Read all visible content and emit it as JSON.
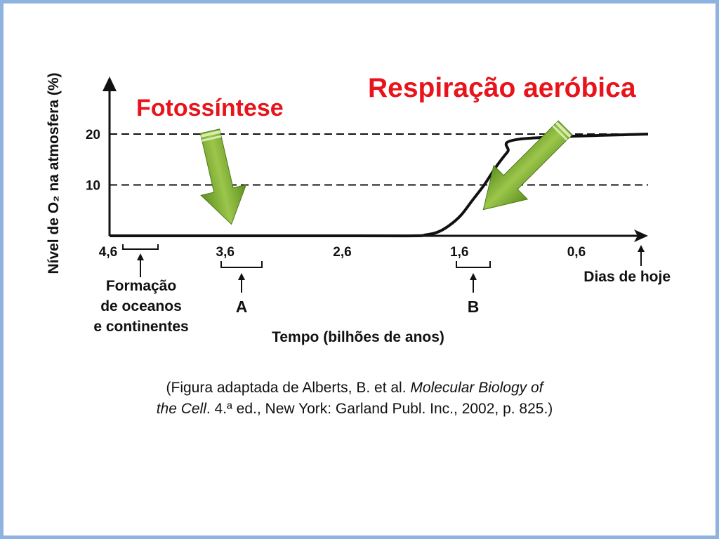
{
  "chart_data": {
    "type": "line",
    "ylabel": "Nível de O₂ na atmosfera (%)",
    "xlabel": "Tempo (bilhões de anos)",
    "x_ticks": [
      "4,6",
      "3,6",
      "2,6",
      "1,6",
      "0,6"
    ],
    "y_ticks": [
      "10",
      "20"
    ],
    "x": [
      4.6,
      2.6,
      2.0,
      1.9,
      1.8,
      1.7,
      1.6,
      1.5,
      1.4,
      1.3,
      1.2,
      1.1,
      0.0
    ],
    "y": [
      0,
      0,
      0,
      0.2,
      0.7,
      2,
      4,
      7,
      10,
      13.5,
      16.5,
      19,
      20
    ],
    "xlim": [
      4.6,
      0
    ],
    "ylim": [
      0,
      20
    ],
    "reference_lines": [
      10,
      20
    ],
    "annotations": {
      "photosynthesis": "Fotossíntese",
      "aerobic_respiration": "Respiração aeróbica",
      "oceans": [
        "Formação",
        "de oceanos",
        "e continentes"
      ],
      "point_a": "A",
      "point_b": "B",
      "today": "Dias de hoje"
    }
  },
  "caption": {
    "line1_prefix": "(Figura adaptada de Alberts, B. et al. ",
    "line1_italic": "Molecular Biology of",
    "line2_italic": "the Cell",
    "line2_suffix": ". 4.ª ed., New York: Garland Publ. Inc., 2002, p. 825.)"
  },
  "colors": {
    "annotation_text": "#e8141b",
    "arrow_fill": "#7aab2e",
    "curve": "#111111",
    "slide_border": "#8fb3e0"
  }
}
